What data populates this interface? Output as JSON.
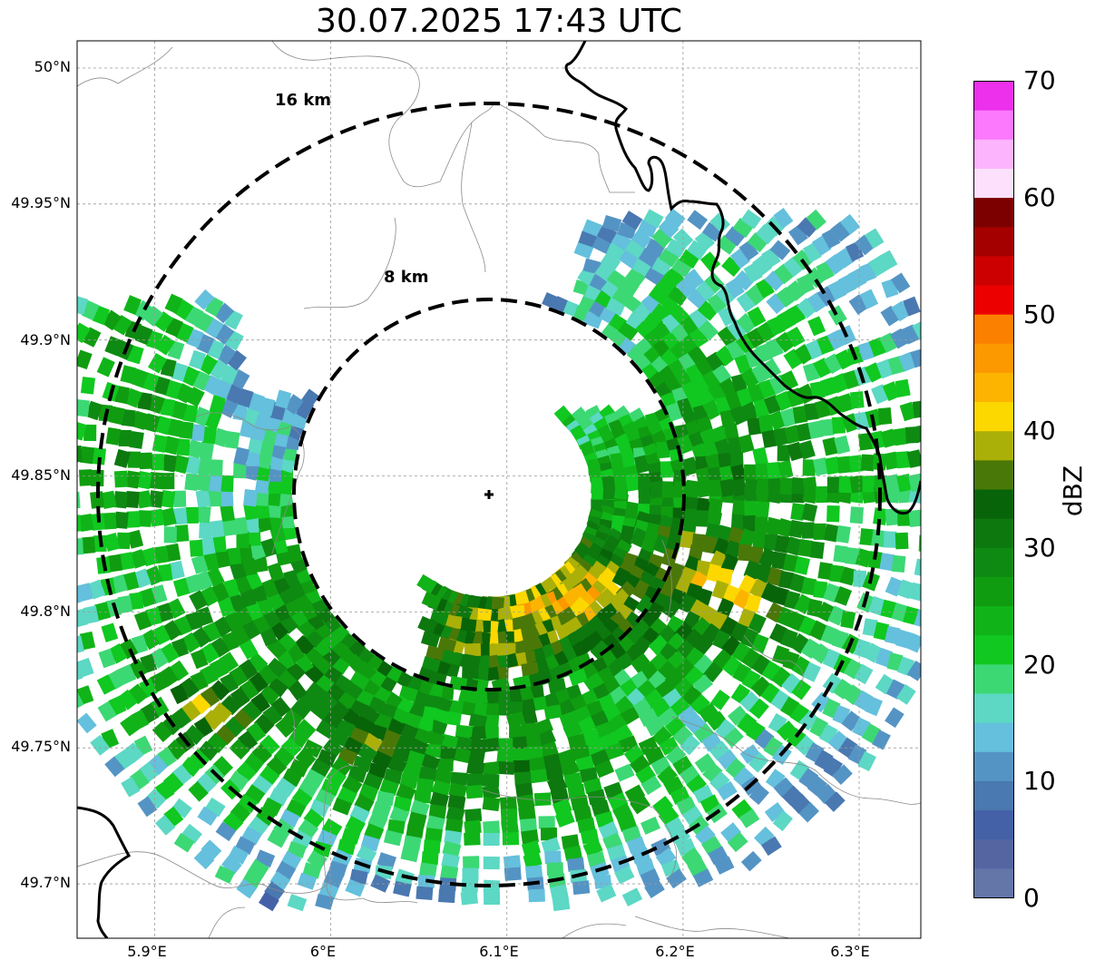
{
  "title": "30.07.2025 17:43 UTC",
  "map": {
    "lat_labels": [
      "50°N",
      "49.95°N",
      "49.9°N",
      "49.85°N",
      "49.8°N",
      "49.75°N",
      "49.7°N"
    ],
    "lon_labels": [
      "5.9°E",
      "6°E",
      "6.1°E",
      "6.2°E",
      "6.3°E"
    ],
    "lat_values": [
      50.0,
      49.95,
      49.9,
      49.85,
      49.8,
      49.75,
      49.7
    ],
    "lon_values": [
      5.9,
      6.0,
      6.1,
      6.2,
      6.3
    ],
    "extent": {
      "lon_min": 5.856,
      "lon_max": 6.335,
      "lat_min": 49.68,
      "lat_max": 50.01
    },
    "range_rings": [
      {
        "label": "16 km",
        "radius_km": 16
      },
      {
        "label": "8 km",
        "radius_km": 8
      }
    ],
    "radar_site": {
      "lon": 6.1,
      "lat": 49.845,
      "marker": "plus"
    },
    "precipitation": "radar reflectivity echoes in a band south and east of the radar site, strongest near 6.12°E 49.79°N"
  },
  "colorbar": {
    "label": "dBZ",
    "tick_labels": [
      "0",
      "10",
      "20",
      "30",
      "40",
      "50",
      "60",
      "70"
    ],
    "min": 0,
    "max": 70,
    "colors": [
      "#6475a8",
      "#5465a2",
      "#4461a8",
      "#4a78b0",
      "#5494c4",
      "#64c0dc",
      "#5cd8c4",
      "#3cd874",
      "#10c820",
      "#10b418",
      "#109c10",
      "#0e8a12",
      "#0c780e",
      "#086408",
      "#4a7808",
      "#aab008",
      "#fcd800",
      "#fcb400",
      "#fc9800",
      "#fc8000",
      "#ec0000",
      "#cc0000",
      "#a40000",
      "#7c0000",
      "#fce0fc",
      "#fcb4fc",
      "#fc78fc",
      "#ec30ec"
    ]
  }
}
